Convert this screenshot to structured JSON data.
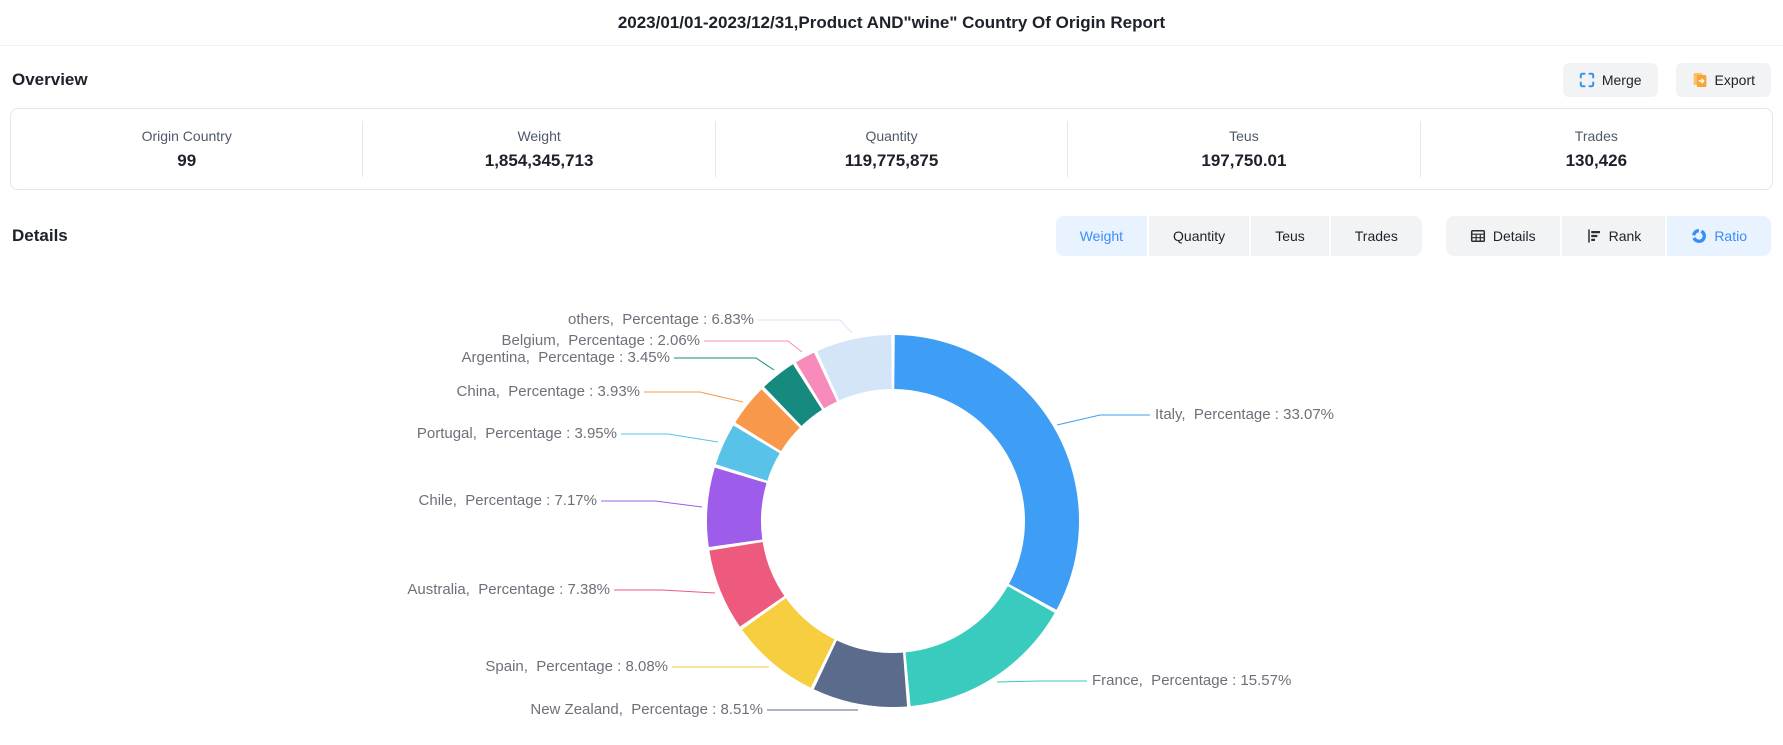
{
  "page": {
    "title": "2023/01/01-2023/12/31,Product AND\"wine\" Country Of Origin Report"
  },
  "overview": {
    "heading": "Overview",
    "merge_label": "Merge",
    "export_label": "Export",
    "stats": [
      {
        "label": "Origin Country",
        "value": "99"
      },
      {
        "label": "Weight",
        "value": "1,854,345,713"
      },
      {
        "label": "Quantity",
        "value": "119,775,875"
      },
      {
        "label": "Teus",
        "value": "197,750.01"
      },
      {
        "label": "Trades",
        "value": "130,426"
      }
    ]
  },
  "details": {
    "heading": "Details",
    "metric_tabs": [
      {
        "label": "Weight",
        "active": true
      },
      {
        "label": "Quantity",
        "active": false
      },
      {
        "label": "Teus",
        "active": false
      },
      {
        "label": "Trades",
        "active": false
      }
    ],
    "view_tabs": [
      {
        "label": "Details",
        "icon": "table-icon",
        "active": false
      },
      {
        "label": "Rank",
        "icon": "rank-icon",
        "active": false
      },
      {
        "label": "Ratio",
        "icon": "donut-icon",
        "active": true
      }
    ]
  },
  "chart_data": {
    "type": "pie",
    "shape": "donut",
    "legend": "none",
    "labels": "outside-with-leader-lines",
    "label_template": "{name},  Percentage : {value}%",
    "series": [
      {
        "name": "Italy",
        "value": 33.07,
        "color": "#3e9df5"
      },
      {
        "name": "France",
        "value": 15.57,
        "color": "#38cbbe"
      },
      {
        "name": "New Zealand",
        "value": 8.51,
        "color": "#5a6b8c"
      },
      {
        "name": "Spain",
        "value": 8.08,
        "color": "#f6ce3f"
      },
      {
        "name": "Australia",
        "value": 7.38,
        "color": "#ee5a7e"
      },
      {
        "name": "Chile",
        "value": 7.17,
        "color": "#9d5ce9"
      },
      {
        "name": "Portugal",
        "value": 3.95,
        "color": "#59c2e8"
      },
      {
        "name": "China",
        "value": 3.93,
        "color": "#f8984b"
      },
      {
        "name": "Argentina",
        "value": 3.45,
        "color": "#178a80"
      },
      {
        "name": "Belgium",
        "value": 2.06,
        "color": "#f78cbc"
      },
      {
        "name": "others",
        "value": 6.83,
        "color": "#d5e5f8"
      }
    ]
  },
  "colors": {
    "accent": "#3a8ef6",
    "accent_bg": "#e8f3ff",
    "tab_bg": "#f2f3f5",
    "border": "#e5e6eb",
    "chart_label_text": "#6e7079",
    "export_icon": "#f7a636"
  }
}
